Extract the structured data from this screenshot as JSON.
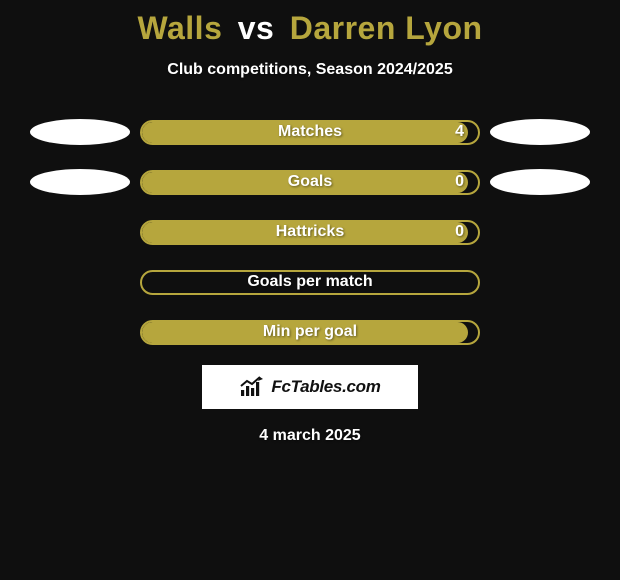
{
  "page": {
    "background_color": "#0f0f0f",
    "text_color": "#ffffff"
  },
  "header": {
    "player1": "Walls",
    "vs": "vs",
    "player2": "Darren Lyon",
    "title_color_p1": "#b6a63d",
    "title_color_vs": "#ffffff",
    "title_color_p2": "#b6a63d",
    "title_fontsize": 32,
    "subtitle": "Club competitions, Season 2024/2025",
    "subtitle_fontsize": 16
  },
  "bars": {
    "track_width": 340,
    "track_height": 25,
    "border_color": "#b6a63d",
    "fill_color": "#b6a63d",
    "label_fontsize": 16,
    "value_fontsize": 16,
    "ellipse_color": "#ffffff",
    "rows": [
      {
        "label": "Matches",
        "value": "4",
        "fill_pct": 97,
        "left_ellipse": true,
        "right_ellipse": true,
        "show_value": true
      },
      {
        "label": "Goals",
        "value": "0",
        "fill_pct": 97,
        "left_ellipse": true,
        "right_ellipse": true,
        "show_value": true
      },
      {
        "label": "Hattricks",
        "value": "0",
        "fill_pct": 97,
        "left_ellipse": false,
        "right_ellipse": false,
        "show_value": true
      },
      {
        "label": "Goals per match",
        "value": "",
        "fill_pct": 0,
        "left_ellipse": false,
        "right_ellipse": false,
        "show_value": false
      },
      {
        "label": "Min per goal",
        "value": "",
        "fill_pct": 97,
        "left_ellipse": false,
        "right_ellipse": false,
        "show_value": false
      }
    ]
  },
  "brand": {
    "box_bg": "#ffffff",
    "text_color": "#111111",
    "icon_color": "#111111",
    "label": "FcTables.com"
  },
  "footer": {
    "date": "4 march 2025",
    "fontsize": 16
  }
}
